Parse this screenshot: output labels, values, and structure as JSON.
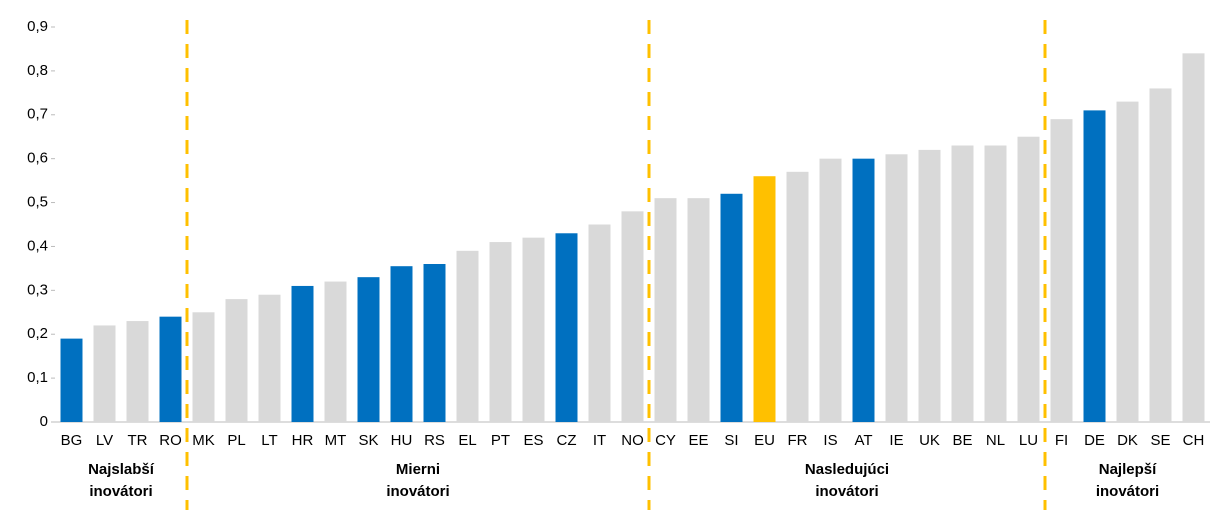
{
  "chart_data": {
    "type": "bar",
    "categories": [
      "BG",
      "LV",
      "TR",
      "RO",
      "MK",
      "PL",
      "LT",
      "HR",
      "MT",
      "SK",
      "HU",
      "RS",
      "EL",
      "PT",
      "ES",
      "CZ",
      "IT",
      "NO",
      "CY",
      "EE",
      "SI",
      "EU",
      "FR",
      "IS",
      "AT",
      "IE",
      "UK",
      "BE",
      "NL",
      "LU",
      "FI",
      "DE",
      "DK",
      "SE",
      "CH"
    ],
    "values": [
      0.19,
      0.22,
      0.23,
      0.24,
      0.25,
      0.28,
      0.29,
      0.31,
      0.32,
      0.33,
      0.355,
      0.36,
      0.39,
      0.41,
      0.42,
      0.43,
      0.45,
      0.48,
      0.51,
      0.51,
      0.52,
      0.56,
      0.57,
      0.6,
      0.6,
      0.61,
      0.62,
      0.63,
      0.63,
      0.65,
      0.69,
      0.71,
      0.73,
      0.76,
      0.84
    ],
    "colors": [
      "#0070c0",
      "#d9d9d9",
      "#d9d9d9",
      "#0070c0",
      "#d9d9d9",
      "#d9d9d9",
      "#d9d9d9",
      "#0070c0",
      "#d9d9d9",
      "#0070c0",
      "#0070c0",
      "#0070c0",
      "#d9d9d9",
      "#d9d9d9",
      "#d9d9d9",
      "#0070c0",
      "#d9d9d9",
      "#d9d9d9",
      "#d9d9d9",
      "#d9d9d9",
      "#0070c0",
      "#ffc000",
      "#d9d9d9",
      "#d9d9d9",
      "#0070c0",
      "#d9d9d9",
      "#d9d9d9",
      "#d9d9d9",
      "#d9d9d9",
      "#d9d9d9",
      "#d9d9d9",
      "#0070c0",
      "#d9d9d9",
      "#d9d9d9",
      "#d9d9d9"
    ],
    "ylim": [
      0,
      0.9
    ],
    "yticks": [
      0,
      {
        "value": 0.1,
        "label": "0,1"
      },
      {
        "value": 0.2,
        "label": "0,2"
      },
      {
        "value": 0.3,
        "label": "0,3"
      },
      {
        "value": 0.4,
        "label": "0,4"
      },
      {
        "value": 0.5,
        "label": "0,5"
      },
      {
        "value": 0.6,
        "label": "0,6"
      },
      {
        "value": 0.7,
        "label": "0,7"
      },
      {
        "value": 0.8,
        "label": "0,8"
      },
      {
        "value": 0.9,
        "label": "0,9"
      }
    ],
    "groups": [
      [
        "Najslabší",
        "inovátori"
      ],
      [
        "Mierni",
        "inovátori"
      ],
      [
        "Nasledujúci",
        "inovátori"
      ],
      [
        "Najlepší",
        "inovátori"
      ]
    ]
  }
}
